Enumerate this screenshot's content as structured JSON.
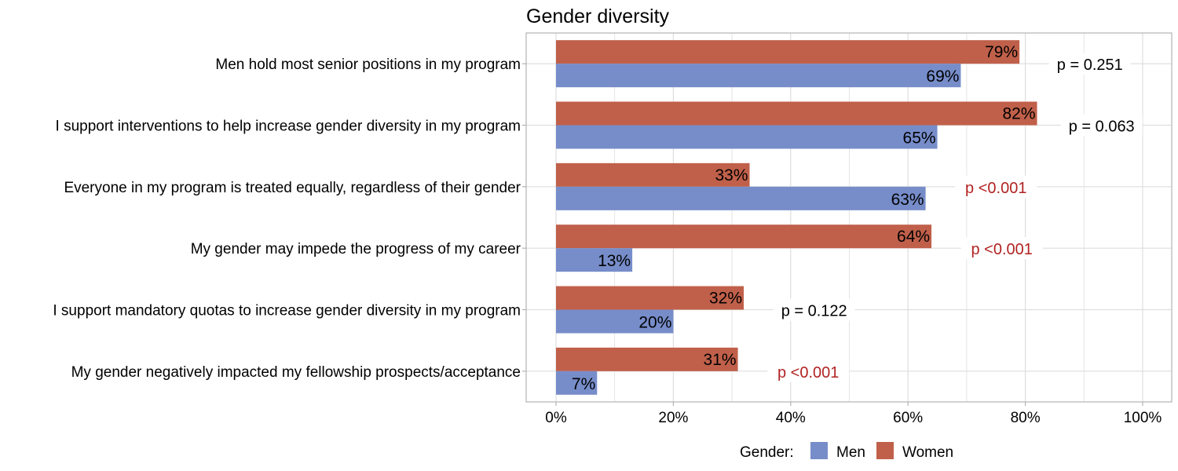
{
  "chart_data": {
    "type": "bar",
    "orientation": "horizontal",
    "title": "Gender diversity",
    "categories": [
      "Men hold most senior positions in my program",
      "I support interventions to help increase gender diversity in my program",
      "Everyone in my program is treated equally, regardless of their gender",
      "My gender may impede the progress of my career",
      "I support mandatory quotas to increase gender diversity in my program",
      "My gender negatively impacted my fellowship prospects/acceptance"
    ],
    "series": [
      {
        "name": "Men",
        "color": "#778DCA",
        "values": [
          69,
          65,
          63,
          13,
          20,
          7
        ],
        "labels": [
          "69%",
          "65%",
          "63%",
          "13%",
          "20%",
          "7%"
        ]
      },
      {
        "name": "Women",
        "color": "#C0604A",
        "values": [
          79,
          82,
          33,
          64,
          32,
          31
        ],
        "labels": [
          "79%",
          "82%",
          "33%",
          "64%",
          "32%",
          "31%"
        ]
      }
    ],
    "p_values": [
      "p = 0.251",
      "p = 0.063",
      "p <0.001",
      "p <0.001",
      "p = 0.122",
      "p <0.001"
    ],
    "p_significant": [
      false,
      false,
      true,
      true,
      false,
      true
    ],
    "significant_color": "#B22222",
    "xlim": [
      0,
      100
    ],
    "x_ticks": [
      "0%",
      "20%",
      "40%",
      "60%",
      "80%",
      "100%"
    ],
    "xlabel": "",
    "ylabel": "",
    "grid": true,
    "legend": {
      "title": "Gender:",
      "position": "bottom",
      "entries": [
        "Men",
        "Women"
      ]
    }
  }
}
